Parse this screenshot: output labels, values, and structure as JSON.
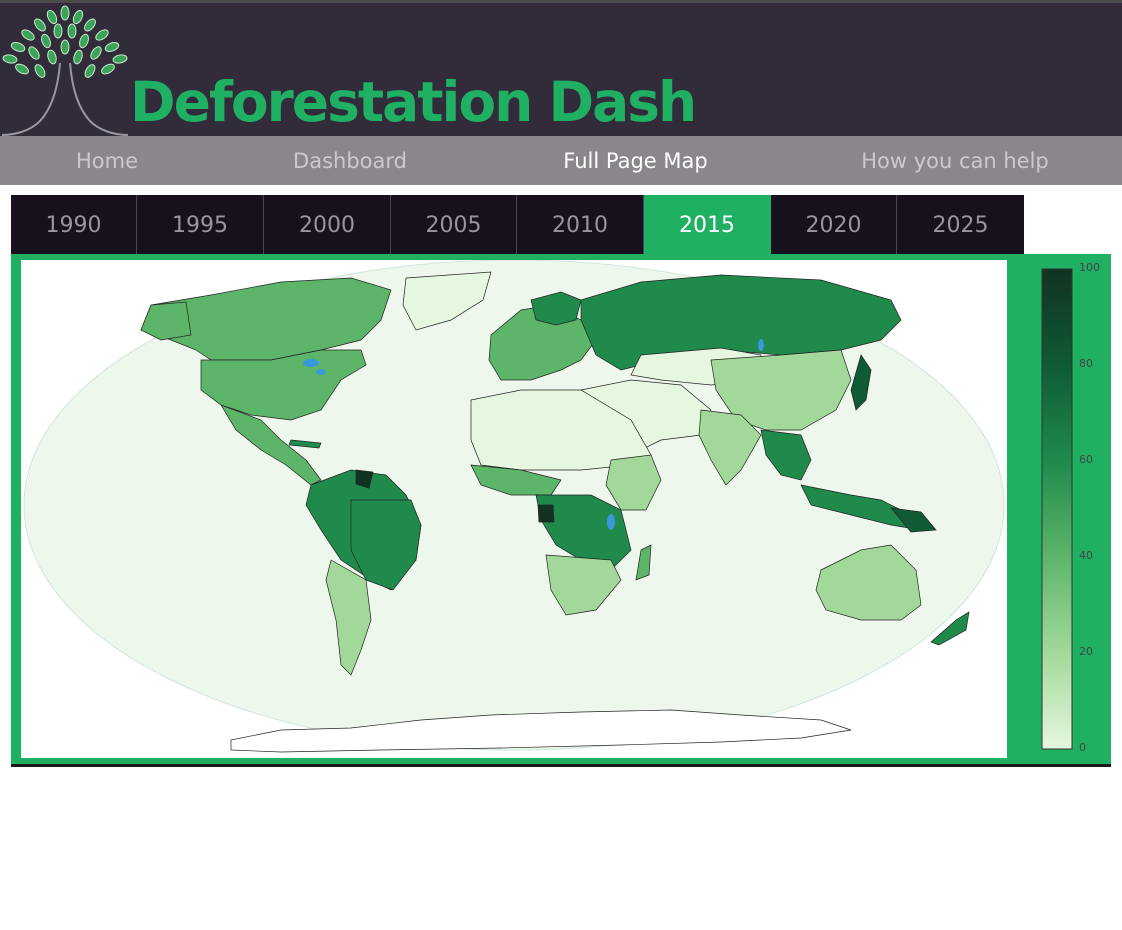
{
  "header": {
    "title": "Deforestation Dash",
    "logo_icon": "tree-icon",
    "title_color": "#1fb064"
  },
  "nav": {
    "items": [
      {
        "label": "Home",
        "active": false
      },
      {
        "label": "Dashboard",
        "active": false
      },
      {
        "label": "Full Page Map",
        "active": true
      },
      {
        "label": "How you can help",
        "active": false
      }
    ]
  },
  "years": {
    "tabs": [
      "1990",
      "1995",
      "2000",
      "2005",
      "2010",
      "2015",
      "2020",
      "2025"
    ],
    "selected": "2015"
  },
  "map": {
    "type": "choropleth",
    "colorscale": [
      "#e6f7df",
      "#a2d99a",
      "#5db56a",
      "#1f8a4c",
      "#0f5b34",
      "#123222"
    ],
    "colorbar": {
      "min": 0,
      "max": 100,
      "ticks": [
        "0",
        "20",
        "40",
        "60",
        "80",
        "100"
      ]
    }
  },
  "colors": {
    "accent": "#1fb064",
    "header_bg": "#312b3a",
    "nav_bg": "#8c858e",
    "yearbar_bg": "#16111d"
  }
}
